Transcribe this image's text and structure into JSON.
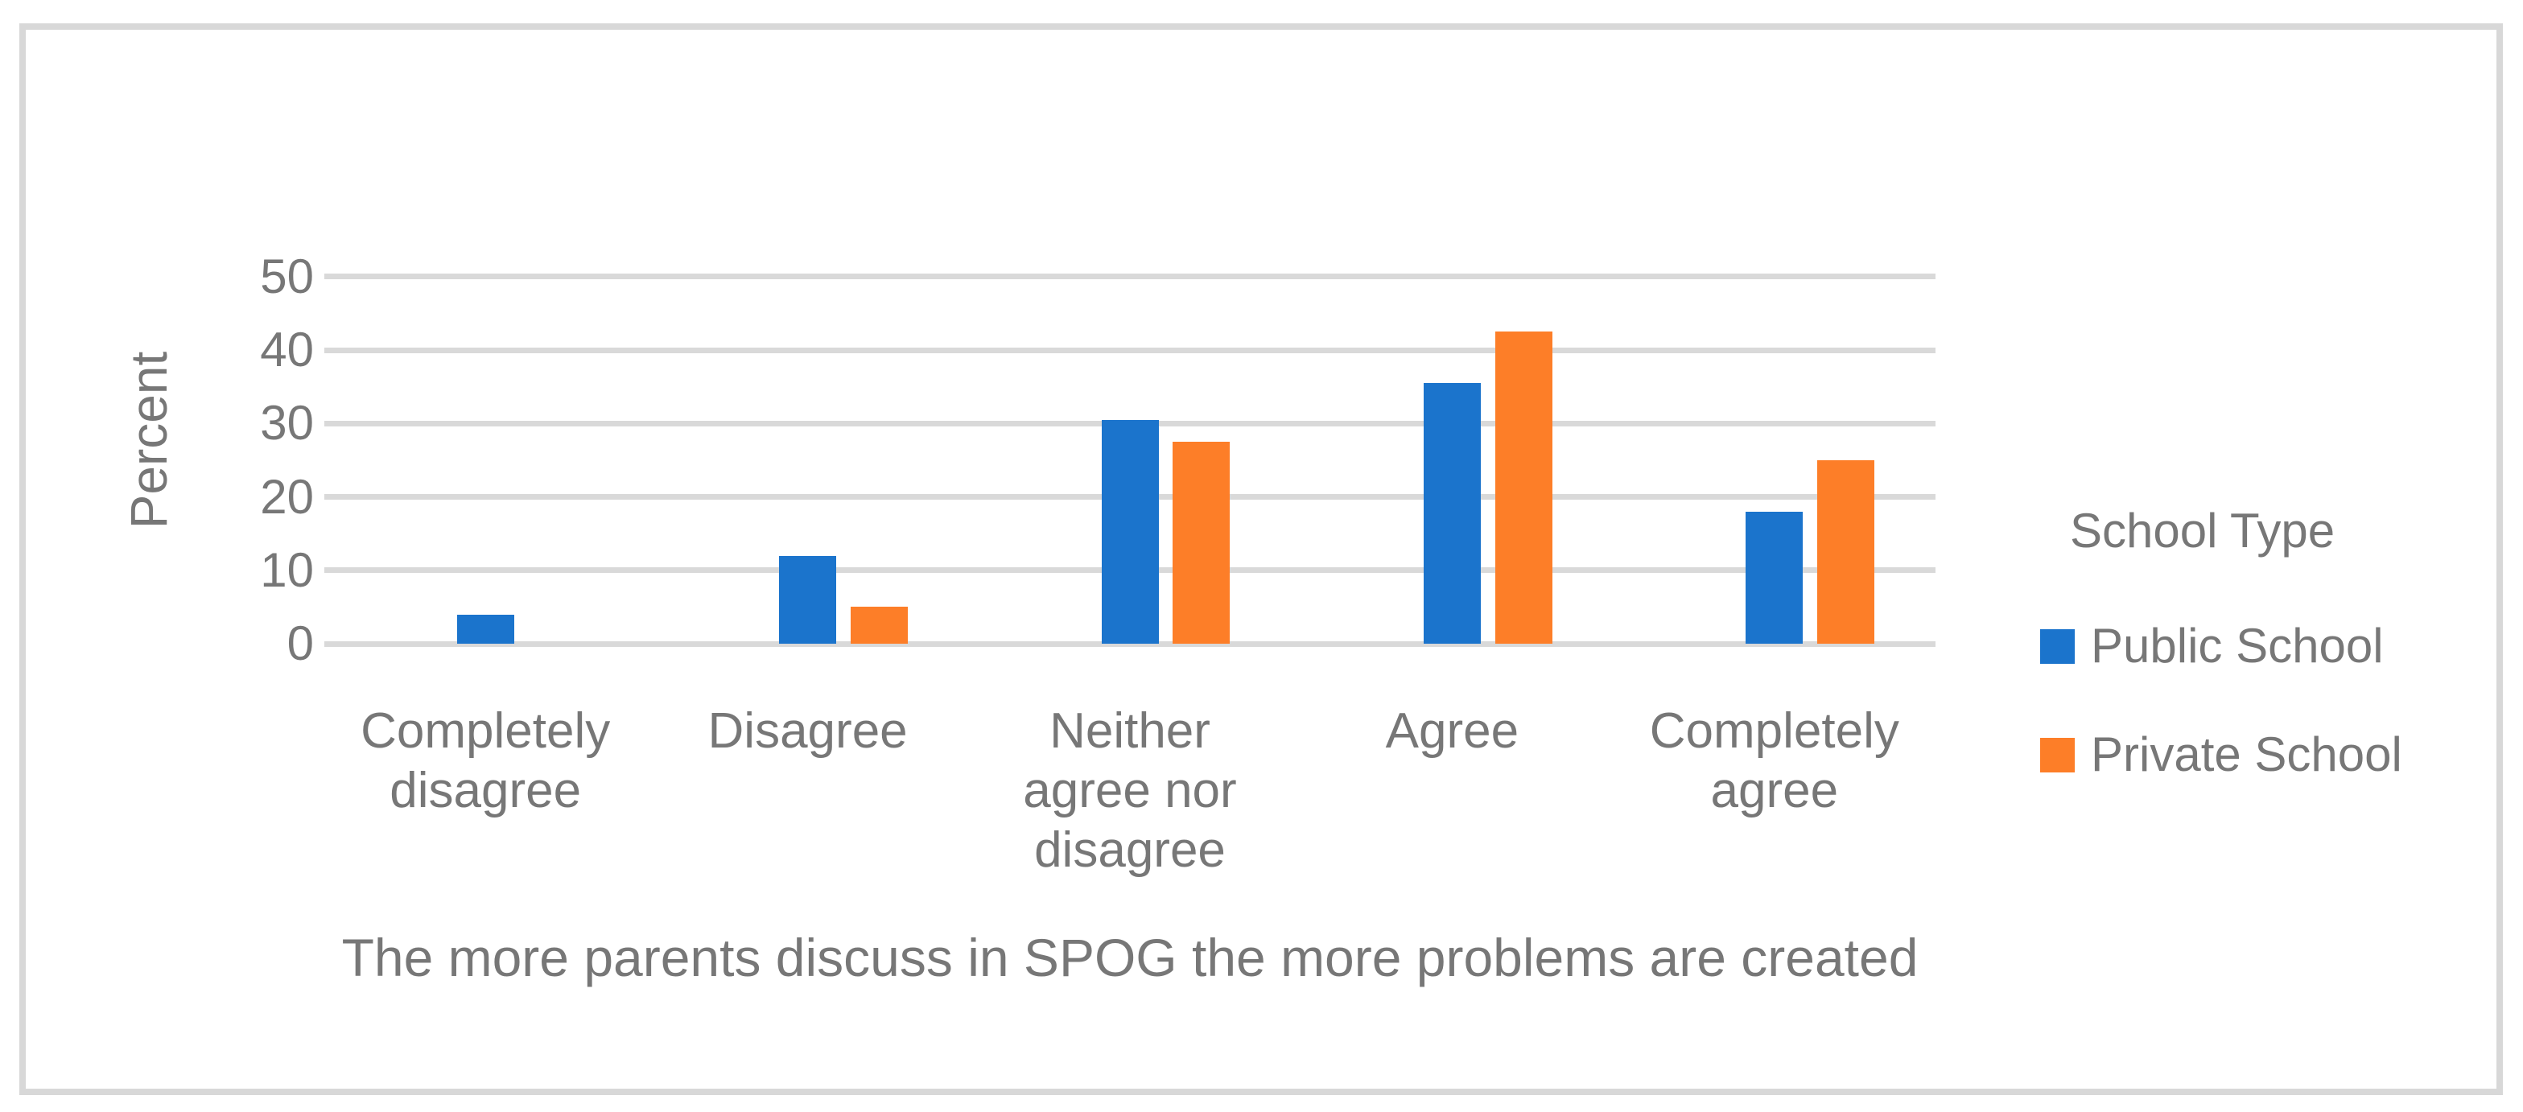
{
  "chart_data": {
    "type": "bar",
    "title": "",
    "xlabel": "The more parents discuss in SPOG the more problems are created",
    "ylabel": "Percent",
    "categories": [
      "Completely disagree",
      "Disagree",
      "Neither agree nor disagree",
      "Agree",
      "Completely agree"
    ],
    "series": [
      {
        "name": "Public School",
        "color": "#1b74cc",
        "values": [
          4,
          12,
          30.5,
          35.5,
          18
        ]
      },
      {
        "name": "Private School",
        "color": "#fd7e28",
        "values": [
          0,
          5,
          27.5,
          42.5,
          25
        ]
      }
    ],
    "ylim": [
      0,
      50
    ],
    "yticks": [
      0,
      10,
      20,
      30,
      40,
      50
    ],
    "grid": true,
    "gridline_color": "#d9d9d9",
    "frame_border_color": "#d8d8d8",
    "text_color": "#777777",
    "legend_title": "School Type",
    "legend_position": "right"
  }
}
